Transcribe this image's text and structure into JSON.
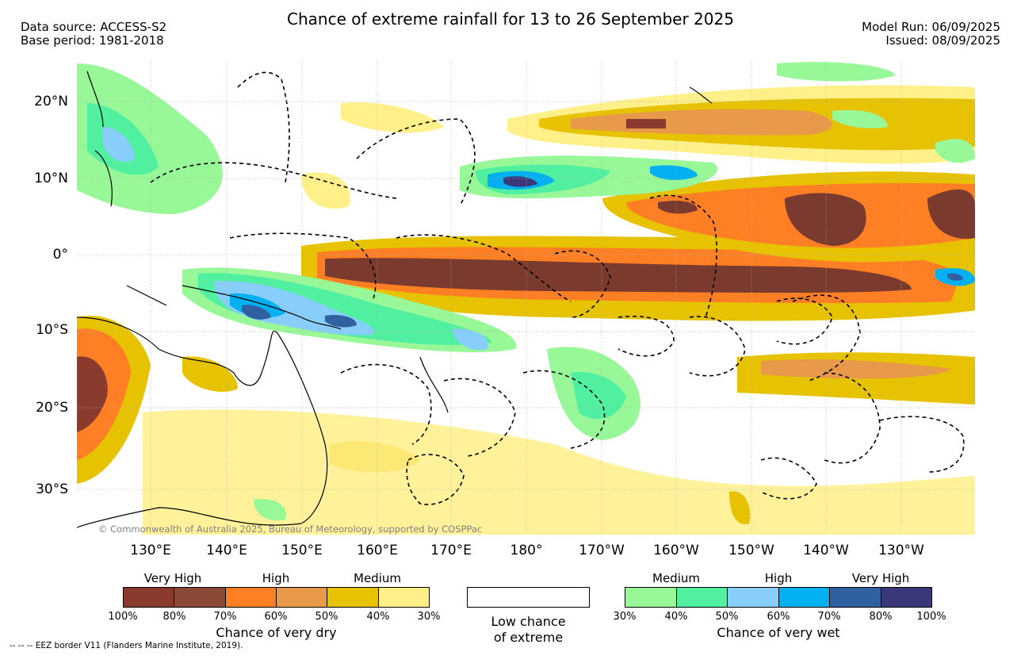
{
  "header": {
    "title": "Chance of extreme rainfall for 13 to 26 September 2025",
    "data_source": "Data source: ACCESS-S2",
    "base_period": "Base period: 1981-2018",
    "model_run": "Model Run: 06/09/2025",
    "issued": "Issued: 08/09/2025"
  },
  "map": {
    "lat_labels": [
      "20°N",
      "10°N",
      "0°",
      "10°S",
      "20°S",
      "30°S"
    ],
    "lon_labels": [
      "130°E",
      "140°E",
      "150°E",
      "160°E",
      "170°E",
      "180°",
      "170°W",
      "160°W",
      "150°W",
      "140°W",
      "130°W"
    ],
    "copyright": "© Commonwealth of Australia 2025, Bureau of Meteorology, supported by COSPPac"
  },
  "legend": {
    "dry": {
      "levels": [
        "Very High",
        "High",
        "Medium"
      ],
      "ticks": [
        "100%",
        "80%",
        "70%",
        "60%",
        "50%",
        "40%",
        "30%"
      ],
      "caption": "Chance of very dry",
      "colors": [
        "#8b3a2e",
        "#8b4a38",
        "#ff7f24",
        "#e8994a",
        "#e6c200",
        "#fff08a"
      ]
    },
    "low": {
      "caption_line1": "Low chance",
      "caption_line2": "of extreme"
    },
    "wet": {
      "levels": [
        "Medium",
        "High",
        "Very High"
      ],
      "ticks": [
        "30%",
        "40%",
        "50%",
        "60%",
        "70%",
        "80%",
        "100%"
      ],
      "caption": "Chance of very wet",
      "colors": [
        "#98f898",
        "#50f0a0",
        "#87cefa",
        "#00b0f0",
        "#3060a0",
        "#3a3878"
      ]
    }
  },
  "footer": {
    "eez_note": "--  --  -- EEZ border V11 (Flanders Marine Institute, 2019)."
  }
}
